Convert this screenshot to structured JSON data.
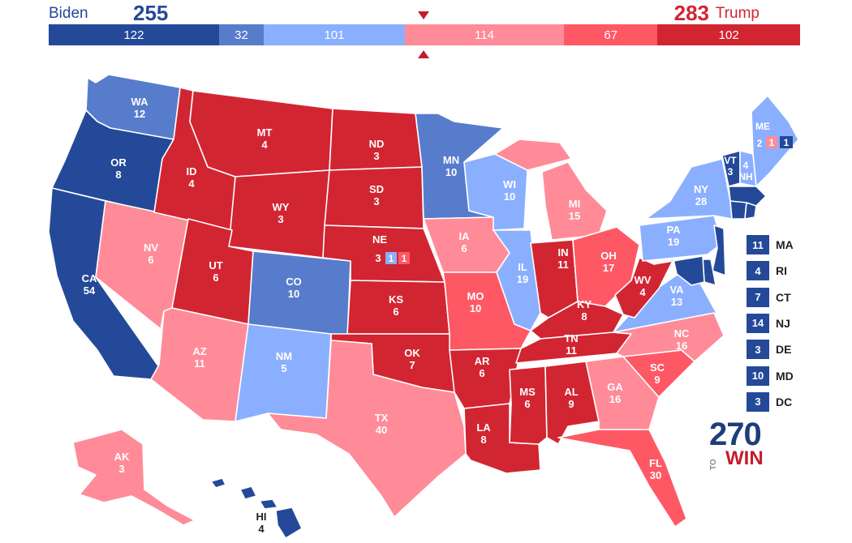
{
  "header": {
    "dem_name": "Biden",
    "dem_total": "255",
    "rep_name": "Trump",
    "rep_total": "283"
  },
  "colors": {
    "safe_dem": "#244999",
    "likely_dem": "#577ccc",
    "lean_dem": "#8aafff",
    "lean_rep": "#ff8b98",
    "likely_rep": "#ff5865",
    "safe_rep": "#d22532"
  },
  "bar_segments": [
    {
      "label": "122",
      "value": 122,
      "rating": "safe_dem"
    },
    {
      "label": "32",
      "value": 32,
      "rating": "likely_dem"
    },
    {
      "label": "101",
      "value": 101,
      "rating": "lean_dem"
    },
    {
      "label": "114",
      "value": 114,
      "rating": "lean_rep"
    },
    {
      "label": "67",
      "value": 67,
      "rating": "likely_rep"
    },
    {
      "label": "102",
      "value": 102,
      "rating": "safe_rep"
    }
  ],
  "states": [
    {
      "abbr": "WA",
      "ev": "12",
      "rating": "likely_dem"
    },
    {
      "abbr": "OR",
      "ev": "8",
      "rating": "safe_dem"
    },
    {
      "abbr": "CA",
      "ev": "54",
      "rating": "safe_dem"
    },
    {
      "abbr": "NV",
      "ev": "6",
      "rating": "lean_rep"
    },
    {
      "abbr": "ID",
      "ev": "4",
      "rating": "safe_rep"
    },
    {
      "abbr": "MT",
      "ev": "4",
      "rating": "safe_rep"
    },
    {
      "abbr": "WY",
      "ev": "3",
      "rating": "safe_rep"
    },
    {
      "abbr": "UT",
      "ev": "6",
      "rating": "safe_rep"
    },
    {
      "abbr": "AZ",
      "ev": "11",
      "rating": "lean_rep"
    },
    {
      "abbr": "CO",
      "ev": "10",
      "rating": "likely_dem"
    },
    {
      "abbr": "NM",
      "ev": "5",
      "rating": "lean_dem"
    },
    {
      "abbr": "ND",
      "ev": "3",
      "rating": "safe_rep"
    },
    {
      "abbr": "SD",
      "ev": "3",
      "rating": "safe_rep"
    },
    {
      "abbr": "NE",
      "ev": "3",
      "rating": "safe_rep"
    },
    {
      "abbr": "KS",
      "ev": "6",
      "rating": "safe_rep"
    },
    {
      "abbr": "OK",
      "ev": "7",
      "rating": "safe_rep"
    },
    {
      "abbr": "TX",
      "ev": "40",
      "rating": "lean_rep"
    },
    {
      "abbr": "MN",
      "ev": "10",
      "rating": "likely_dem"
    },
    {
      "abbr": "IA",
      "ev": "6",
      "rating": "lean_rep"
    },
    {
      "abbr": "MO",
      "ev": "10",
      "rating": "likely_rep"
    },
    {
      "abbr": "AR",
      "ev": "6",
      "rating": "safe_rep"
    },
    {
      "abbr": "LA",
      "ev": "8",
      "rating": "safe_rep"
    },
    {
      "abbr": "WI",
      "ev": "10",
      "rating": "lean_dem"
    },
    {
      "abbr": "IL",
      "ev": "19",
      "rating": "lean_dem"
    },
    {
      "abbr": "MI",
      "ev": "15",
      "rating": "lean_rep"
    },
    {
      "abbr": "IN",
      "ev": "11",
      "rating": "safe_rep"
    },
    {
      "abbr": "OH",
      "ev": "17",
      "rating": "likely_rep"
    },
    {
      "abbr": "KY",
      "ev": "8",
      "rating": "safe_rep"
    },
    {
      "abbr": "TN",
      "ev": "11",
      "rating": "safe_rep"
    },
    {
      "abbr": "MS",
      "ev": "6",
      "rating": "safe_rep"
    },
    {
      "abbr": "AL",
      "ev": "9",
      "rating": "safe_rep"
    },
    {
      "abbr": "GA",
      "ev": "16",
      "rating": "lean_rep"
    },
    {
      "abbr": "FL",
      "ev": "30",
      "rating": "likely_rep"
    },
    {
      "abbr": "SC",
      "ev": "9",
      "rating": "likely_rep"
    },
    {
      "abbr": "NC",
      "ev": "16",
      "rating": "lean_rep"
    },
    {
      "abbr": "VA",
      "ev": "13",
      "rating": "lean_dem"
    },
    {
      "abbr": "WV",
      "ev": "4",
      "rating": "safe_rep"
    },
    {
      "abbr": "PA",
      "ev": "19",
      "rating": "lean_dem"
    },
    {
      "abbr": "NY",
      "ev": "28",
      "rating": "lean_dem"
    },
    {
      "abbr": "VT",
      "ev": "3",
      "rating": "safe_dem"
    },
    {
      "abbr": "NH",
      "ev": "4",
      "rating": "lean_dem"
    },
    {
      "abbr": "ME",
      "ev": "",
      "rating": "lean_dem"
    },
    {
      "abbr": "AK",
      "ev": "3",
      "rating": "lean_rep"
    },
    {
      "abbr": "HI",
      "ev": "4",
      "rating": "safe_dem"
    }
  ],
  "split_votes": {
    "ne": {
      "statewide": "3",
      "d1": "1",
      "d2": "1"
    },
    "me": {
      "statewide": "2",
      "d1": "1",
      "d2": "1"
    }
  },
  "small_states": [
    {
      "abbr": "MA",
      "ev": "11",
      "rating": "safe_dem"
    },
    {
      "abbr": "RI",
      "ev": "4",
      "rating": "safe_dem"
    },
    {
      "abbr": "CT",
      "ev": "7",
      "rating": "safe_dem"
    },
    {
      "abbr": "NJ",
      "ev": "14",
      "rating": "safe_dem"
    },
    {
      "abbr": "DE",
      "ev": "3",
      "rating": "safe_dem"
    },
    {
      "abbr": "MD",
      "ev": "10",
      "rating": "safe_dem"
    },
    {
      "abbr": "DC",
      "ev": "3",
      "rating": "safe_dem"
    }
  ],
  "logo": {
    "number": "270",
    "to": "TO",
    "win": "WIN"
  }
}
